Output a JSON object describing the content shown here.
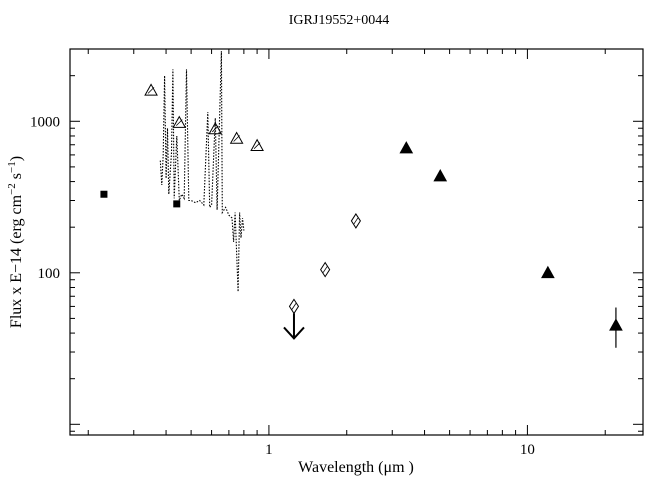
{
  "chart_data": {
    "type": "scatter",
    "title": "IGRJ19552+0044",
    "xlabel": "Wavelength (μm )",
    "ylabel_parts": {
      "pre": "Flux x E−14 (erg cm",
      "exp1": "−2",
      "mid": " s",
      "exp2": "−1",
      "post": ")"
    },
    "x_scale": "log",
    "y_scale": "log",
    "xlim": [
      0.17,
      28
    ],
    "ylim": [
      8.5,
      3000
    ],
    "x_ticks": [
      {
        "value": 1,
        "label": "1"
      },
      {
        "value": 10,
        "label": "10"
      }
    ],
    "y_ticks": [
      {
        "value": 100,
        "label": "100"
      },
      {
        "value": 1000,
        "label": "1000"
      }
    ],
    "grid": false,
    "legend": "none",
    "series": [
      {
        "marker": "filled-square",
        "points": [
          {
            "x": 0.23,
            "y": 330
          },
          {
            "x": 0.44,
            "y": 285
          }
        ]
      },
      {
        "marker": "open-triangle",
        "points": [
          {
            "x": 0.35,
            "y": 1600
          },
          {
            "x": 0.45,
            "y": 980
          },
          {
            "x": 0.62,
            "y": 890
          },
          {
            "x": 0.75,
            "y": 770
          },
          {
            "x": 0.9,
            "y": 690
          }
        ]
      },
      {
        "marker": "open-diamond",
        "points": [
          {
            "x": 1.25,
            "y": 60,
            "upper_limit": true
          },
          {
            "x": 1.65,
            "y": 105
          },
          {
            "x": 2.17,
            "y": 220
          }
        ]
      },
      {
        "marker": "filled-triangle",
        "points": [
          {
            "x": 3.4,
            "y": 665
          },
          {
            "x": 4.6,
            "y": 435
          },
          {
            "x": 12,
            "y": 100
          },
          {
            "x": 22,
            "y": 45,
            "error_low": 32,
            "error_high": 59
          }
        ]
      },
      {
        "marker": "dotted-spectrum",
        "points": [
          {
            "x": 0.38,
            "y": 550
          },
          {
            "x": 0.385,
            "y": 380
          },
          {
            "x": 0.39,
            "y": 600
          },
          {
            "x": 0.395,
            "y": 2000
          },
          {
            "x": 0.4,
            "y": 420
          },
          {
            "x": 0.405,
            "y": 900
          },
          {
            "x": 0.41,
            "y": 330
          },
          {
            "x": 0.42,
            "y": 620
          },
          {
            "x": 0.425,
            "y": 2200
          },
          {
            "x": 0.43,
            "y": 310
          },
          {
            "x": 0.44,
            "y": 800
          },
          {
            "x": 0.45,
            "y": 300
          },
          {
            "x": 0.46,
            "y": 330
          },
          {
            "x": 0.47,
            "y": 310
          },
          {
            "x": 0.48,
            "y": 2200
          },
          {
            "x": 0.49,
            "y": 300
          },
          {
            "x": 0.5,
            "y": 300
          },
          {
            "x": 0.52,
            "y": 290
          },
          {
            "x": 0.54,
            "y": 300
          },
          {
            "x": 0.56,
            "y": 280
          },
          {
            "x": 0.58,
            "y": 1150
          },
          {
            "x": 0.59,
            "y": 270
          },
          {
            "x": 0.6,
            "y": 280
          },
          {
            "x": 0.62,
            "y": 1050
          },
          {
            "x": 0.63,
            "y": 260
          },
          {
            "x": 0.655,
            "y": 2900
          },
          {
            "x": 0.66,
            "y": 250
          },
          {
            "x": 0.68,
            "y": 270
          },
          {
            "x": 0.7,
            "y": 240
          },
          {
            "x": 0.72,
            "y": 230
          },
          {
            "x": 0.73,
            "y": 160
          },
          {
            "x": 0.74,
            "y": 250
          },
          {
            "x": 0.76,
            "y": 75
          },
          {
            "x": 0.77,
            "y": 250
          },
          {
            "x": 0.78,
            "y": 170
          },
          {
            "x": 0.79,
            "y": 230
          },
          {
            "x": 0.8,
            "y": 190
          }
        ]
      }
    ]
  }
}
